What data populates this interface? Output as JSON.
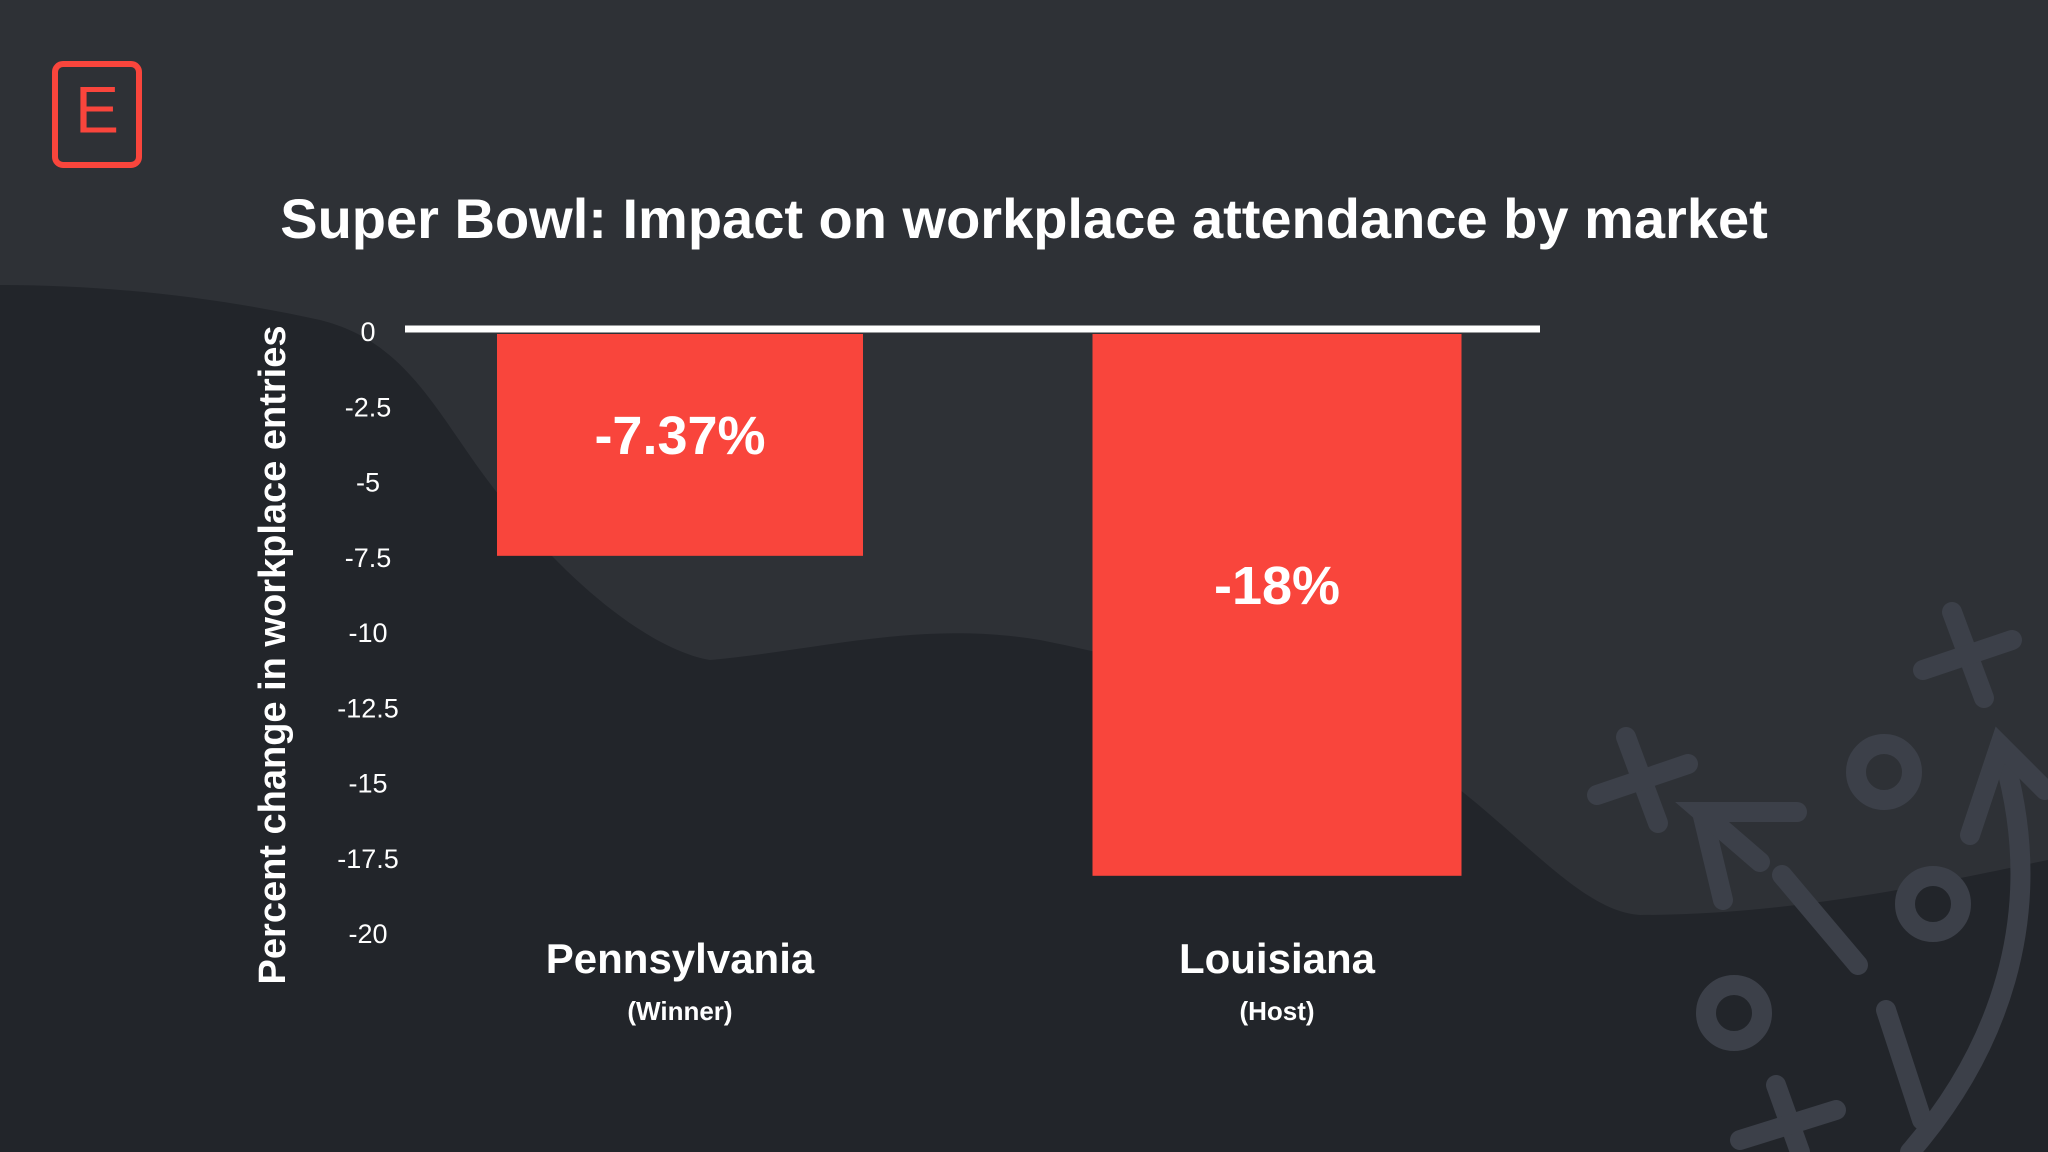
{
  "brand": {
    "logo_letter": "E",
    "accent_color": "#f9453c",
    "background_color": "#2e3136",
    "wave_color": "#22252a",
    "deco_color": "#3c4049"
  },
  "decorations": {
    "icons": [
      "play-diagram-x-icon",
      "play-diagram-o-icon",
      "play-diagram-arrow-icon"
    ]
  },
  "chart_data": {
    "type": "bar",
    "title": "Super Bowl: Impact on workplace attendance by market",
    "xlabel": "",
    "ylabel": "Percent change in workplace entries",
    "ylim": [
      -20,
      0
    ],
    "yticks": [
      0,
      -2.5,
      -5,
      -7.5,
      -10,
      -12.5,
      -15,
      -17.5,
      -20
    ],
    "ytick_labels": [
      "0",
      "-2.5",
      "-5",
      "-7.5",
      "-10",
      "-12.5",
      "-15",
      "-17.5",
      "-20"
    ],
    "categories": [
      "Pennsylvania",
      "Louisiana"
    ],
    "category_subtitles": [
      "(Winner)",
      "(Host)"
    ],
    "values": [
      -7.37,
      -18
    ],
    "data_labels": [
      "-7.37%",
      "-18%"
    ],
    "bar_color": "#f9453c",
    "legend": "none"
  }
}
